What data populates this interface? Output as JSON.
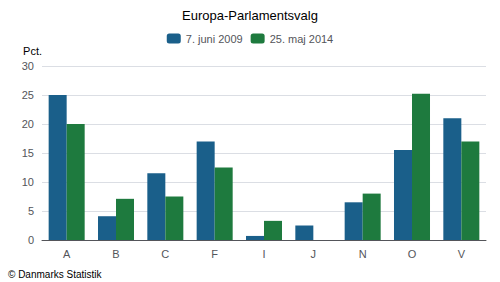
{
  "chart_data": {
    "type": "bar",
    "title": "Europa-Parlamentsvalg",
    "categories": [
      "A",
      "B",
      "C",
      "F",
      "I",
      "J",
      "N",
      "O",
      "V"
    ],
    "series": [
      {
        "name": "7. juni 2009",
        "color": "#1a5f8a",
        "values": [
          25.0,
          4.1,
          11.5,
          17.0,
          0.7,
          2.5,
          6.5,
          15.5,
          21.0
        ]
      },
      {
        "name": "25. maj 2014",
        "color": "#1e7a3e",
        "values": [
          20.0,
          7.1,
          7.5,
          12.5,
          3.3,
          0.0,
          8.0,
          25.2,
          17.0
        ]
      }
    ],
    "ylabel": "Pct.",
    "ylim": [
      0,
      30
    ],
    "yticks": [
      0,
      5,
      10,
      15,
      20,
      25,
      30
    ],
    "grid": true,
    "legend": "top",
    "annotations": [
      "© Danmarks Statistik"
    ]
  }
}
